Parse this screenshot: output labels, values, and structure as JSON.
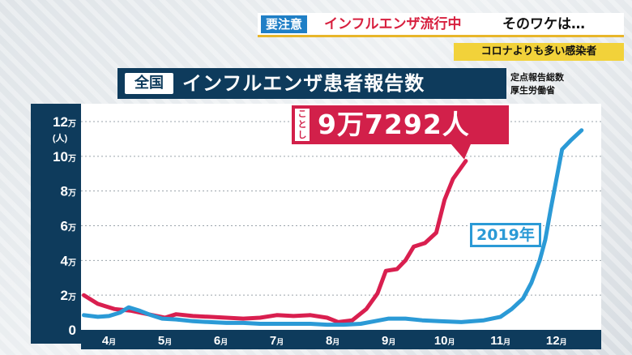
{
  "header": {
    "badge": "要注意",
    "headline": "インフルエンザ流行中",
    "tail": "そのワケは…"
  },
  "subheader": "コロナよりも多い感染者",
  "title": {
    "scope": "全国",
    "main": "インフルエンザ患者報告数"
  },
  "source": {
    "line1": "定点報告総数",
    "line2": "厚生労働省"
  },
  "callout": {
    "side": "ことし",
    "value": "9万7292人"
  },
  "series_label_2019": "2019年",
  "colors": {
    "this_year": "#d91f4f",
    "y2019": "#2b9ad6",
    "navy": "#0e3b5c"
  },
  "chart_data": {
    "type": "line",
    "title": "インフルエンザ患者報告数",
    "ylabel": "(人)",
    "ylim": [
      0,
      12
    ],
    "y_unit": "万",
    "yticks": [
      {
        "value": 0,
        "label": "0"
      },
      {
        "value": 2,
        "label": "2万"
      },
      {
        "value": 4,
        "label": "4万"
      },
      {
        "value": 6,
        "label": "6万"
      },
      {
        "value": 8,
        "label": "8万"
      },
      {
        "value": 10,
        "label": "10万"
      },
      {
        "value": 12,
        "label": "12万"
      }
    ],
    "xlim": [
      3.5,
      12.8
    ],
    "xticks": [
      {
        "value": 4,
        "label": "4月"
      },
      {
        "value": 5,
        "label": "5月"
      },
      {
        "value": 6,
        "label": "6月"
      },
      {
        "value": 7,
        "label": "7月"
      },
      {
        "value": 8,
        "label": "8月"
      },
      {
        "value": 9,
        "label": "9月"
      },
      {
        "value": 10,
        "label": "10月"
      },
      {
        "value": 11,
        "label": "11月"
      },
      {
        "value": 12,
        "label": "12月"
      }
    ],
    "grid": "horizontal-dotted",
    "series": [
      {
        "name": "ことし",
        "color": "#d91f4f",
        "points": [
          [
            3.55,
            2.0
          ],
          [
            3.8,
            1.5
          ],
          [
            4.1,
            1.2
          ],
          [
            4.4,
            1.1
          ],
          [
            4.7,
            0.9
          ],
          [
            5.0,
            0.7
          ],
          [
            5.2,
            0.9
          ],
          [
            5.5,
            0.8
          ],
          [
            5.8,
            0.75
          ],
          [
            6.1,
            0.7
          ],
          [
            6.4,
            0.65
          ],
          [
            6.7,
            0.7
          ],
          [
            7.0,
            0.85
          ],
          [
            7.3,
            0.8
          ],
          [
            7.6,
            0.85
          ],
          [
            7.9,
            0.7
          ],
          [
            8.1,
            0.45
          ],
          [
            8.35,
            0.55
          ],
          [
            8.6,
            1.2
          ],
          [
            8.8,
            2.1
          ],
          [
            8.95,
            3.4
          ],
          [
            9.15,
            3.5
          ],
          [
            9.3,
            4.0
          ],
          [
            9.45,
            4.8
          ],
          [
            9.65,
            5.0
          ],
          [
            9.85,
            5.6
          ],
          [
            10.0,
            7.5
          ],
          [
            10.15,
            8.7
          ],
          [
            10.38,
            9.73
          ]
        ]
      },
      {
        "name": "2019年",
        "color": "#2b9ad6",
        "points": [
          [
            3.55,
            0.85
          ],
          [
            3.8,
            0.75
          ],
          [
            4.0,
            0.8
          ],
          [
            4.2,
            1.0
          ],
          [
            4.35,
            1.3
          ],
          [
            4.55,
            1.1
          ],
          [
            4.75,
            0.85
          ],
          [
            4.95,
            0.65
          ],
          [
            5.2,
            0.6
          ],
          [
            5.5,
            0.5
          ],
          [
            5.8,
            0.45
          ],
          [
            6.1,
            0.4
          ],
          [
            6.4,
            0.4
          ],
          [
            6.7,
            0.35
          ],
          [
            7.0,
            0.35
          ],
          [
            7.3,
            0.35
          ],
          [
            7.6,
            0.35
          ],
          [
            7.9,
            0.3
          ],
          [
            8.2,
            0.3
          ],
          [
            8.5,
            0.35
          ],
          [
            8.75,
            0.5
          ],
          [
            9.0,
            0.65
          ],
          [
            9.3,
            0.65
          ],
          [
            9.6,
            0.55
          ],
          [
            9.9,
            0.5
          ],
          [
            10.3,
            0.45
          ],
          [
            10.7,
            0.55
          ],
          [
            11.0,
            0.75
          ],
          [
            11.2,
            1.2
          ],
          [
            11.4,
            1.8
          ],
          [
            11.55,
            2.7
          ],
          [
            11.7,
            4.0
          ],
          [
            11.8,
            5.2
          ],
          [
            11.9,
            7.0
          ],
          [
            12.0,
            8.7
          ],
          [
            12.1,
            10.4
          ],
          [
            12.25,
            10.9
          ],
          [
            12.45,
            11.5
          ]
        ]
      }
    ]
  }
}
